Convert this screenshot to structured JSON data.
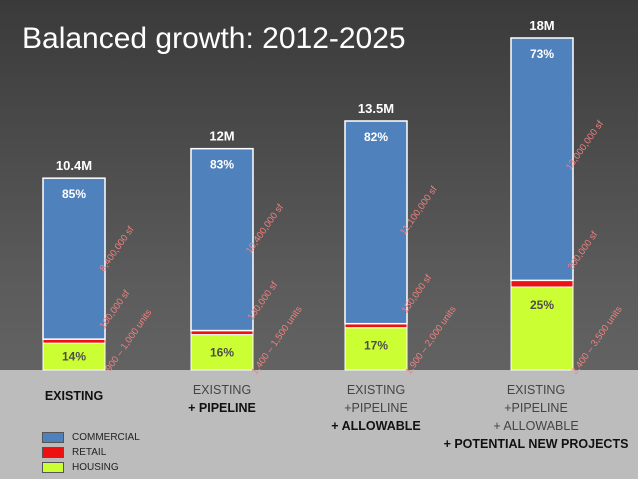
{
  "chart_data": {
    "type": "bar",
    "stacked": true,
    "title": "Balanced growth: 2012-2025",
    "categories": [
      {
        "lines": [
          {
            "text": "EXISTING",
            "bold": true
          }
        ]
      },
      {
        "lines": [
          {
            "text": "EXISTING",
            "bold": false
          },
          {
            "text": "+ PIPELINE",
            "bold": true
          }
        ]
      },
      {
        "lines": [
          {
            "text": "EXISTING",
            "bold": false
          },
          {
            "text": "+PIPELINE",
            "bold": false
          },
          {
            "text": "+ ALLOWABLE",
            "bold": true
          }
        ]
      },
      {
        "lines": [
          {
            "text": "EXISTING",
            "bold": false
          },
          {
            "text": "+PIPELINE",
            "bold": false
          },
          {
            "text": "+ ALLOWABLE",
            "bold": false
          },
          {
            "text": "+ POTENTIAL NEW PROJECTS",
            "bold": true
          }
        ]
      }
    ],
    "totals_millions": [
      10.4,
      12,
      13.5,
      18
    ],
    "total_labels": [
      "10.4M",
      "12M",
      "13.5M",
      "18M"
    ],
    "series": [
      {
        "name": "HOUSING",
        "color": "#ccff33",
        "shares": [
          14,
          16,
          17,
          25
        ],
        "labels": [
          "14%",
          "16%",
          "17%",
          "25%"
        ],
        "side_labels": [
          [
            "900 – 1,000 units"
          ],
          [
            "1,400 – 1,500 units"
          ],
          [
            "1,900 – 2,000 units"
          ],
          [
            "3,400 – 3,500 units"
          ]
        ]
      },
      {
        "name": "RETAIL",
        "color": "#ee1111",
        "shares": [
          1,
          1,
          1,
          2
        ],
        "side_labels": [
          [
            "100,000 sf"
          ],
          [
            "130,000 sf"
          ],
          [
            "150,000 sf"
          ],
          [
            "300,000 sf"
          ]
        ]
      },
      {
        "name": "COMMERCIAL",
        "color": "#4f81bd",
        "shares": [
          85,
          83,
          82,
          73
        ],
        "labels": [
          "85%",
          "83%",
          "82%",
          "73%"
        ],
        "side_labels": [
          [
            "8,400,000 sf"
          ],
          [
            "10,400,000 sf"
          ],
          [
            "11,100,000 sf"
          ],
          [
            "13,000,000 sf"
          ]
        ]
      }
    ],
    "legend": [
      {
        "name": "COMMERCIAL",
        "color": "#4f81bd"
      },
      {
        "name": "RETAIL",
        "color": "#ee1111"
      },
      {
        "name": "HOUSING",
        "color": "#ccff33"
      }
    ],
    "ylim": [
      0,
      18
    ],
    "grid": false,
    "legend_position": "bottom-left"
  }
}
